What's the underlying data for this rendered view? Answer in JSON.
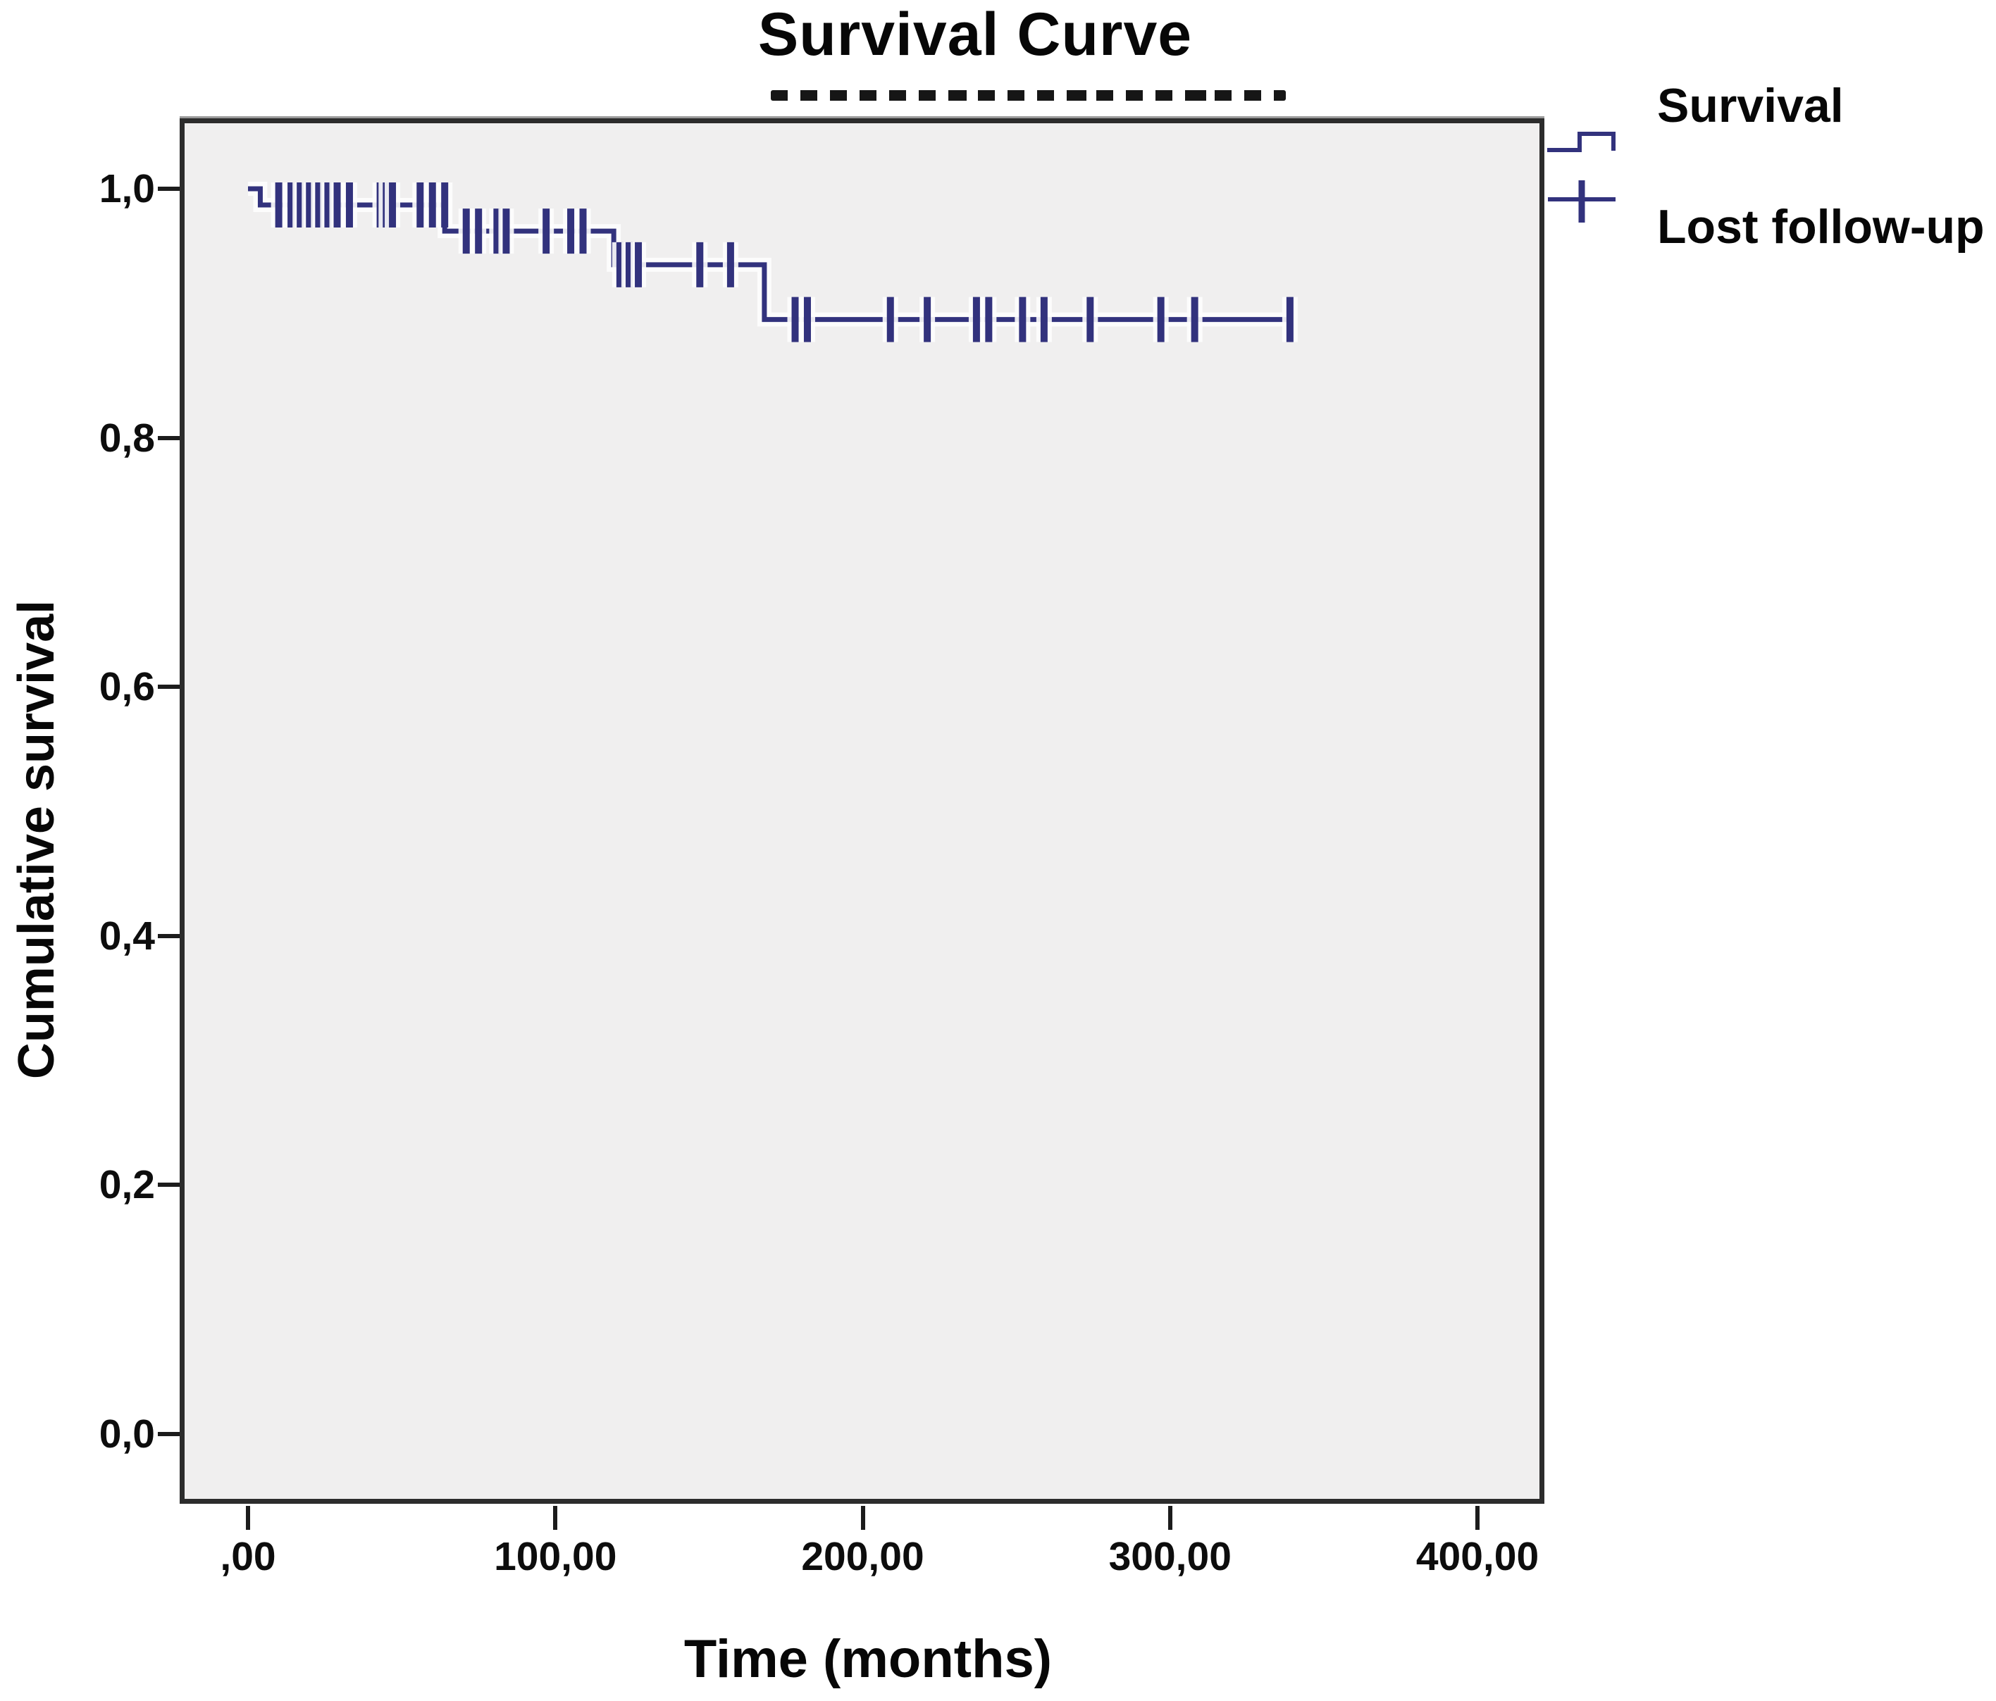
{
  "figure": {
    "title": "Survival Curve",
    "subtitle_redacted": true
  },
  "axes": {
    "x_title": "Time (months)",
    "y_title": "Cumulative survival"
  },
  "legend": {
    "items": [
      {
        "label": "Survival",
        "symbol": "step-line-icon"
      },
      {
        "label": "Lost follow-up",
        "symbol": "plus-censor-icon"
      }
    ]
  },
  "colors": {
    "curve": "#32327d",
    "halo": "#fdfdfd",
    "panel_bg": "#f0efef",
    "panel_border": "#2c2c2c",
    "text": "#0a0a0a"
  },
  "chart_data": {
    "type": "line",
    "subtype": "kaplan-meier-step",
    "title": "Survival Curve",
    "xlabel": "Time (months)",
    "ylabel": "Cumulative survival",
    "xlim": [
      0,
      400
    ],
    "ylim": [
      0.0,
      1.0
    ],
    "grid": false,
    "legend_position": "top-right-outside",
    "x_ticks": [
      {
        "value": 0,
        "label": ",00"
      },
      {
        "value": 100,
        "label": "100,00"
      },
      {
        "value": 200,
        "label": "200,00"
      },
      {
        "value": 300,
        "label": "300,00"
      },
      {
        "value": 400,
        "label": "400,00"
      }
    ],
    "y_ticks": [
      {
        "value": 0.0,
        "label": "0,0"
      },
      {
        "value": 0.2,
        "label": "0,2"
      },
      {
        "value": 0.4,
        "label": "0,4"
      },
      {
        "value": 0.6,
        "label": "0,6"
      },
      {
        "value": 0.8,
        "label": "0,8"
      },
      {
        "value": 1.0,
        "label": "1,0"
      }
    ],
    "series": [
      {
        "name": "Survival",
        "steps": [
          {
            "from": 0,
            "to": 4,
            "survival": 1.0
          },
          {
            "from": 4,
            "to": 64,
            "survival": 0.987
          },
          {
            "from": 64,
            "to": 119,
            "survival": 0.966
          },
          {
            "from": 119,
            "to": 168,
            "survival": 0.939
          },
          {
            "from": 168,
            "to": 340,
            "survival": 0.895
          }
        ]
      }
    ],
    "censored": [
      {
        "t": 10,
        "s": 0.987
      },
      {
        "t": 14,
        "s": 0.987
      },
      {
        "t": 17,
        "s": 0.987
      },
      {
        "t": 20,
        "s": 0.987
      },
      {
        "t": 23,
        "s": 0.987
      },
      {
        "t": 26,
        "s": 0.987
      },
      {
        "t": 29,
        "s": 0.987
      },
      {
        "t": 33,
        "s": 0.987
      },
      {
        "t": 43,
        "s": 0.987
      },
      {
        "t": 45,
        "s": 0.987
      },
      {
        "t": 47,
        "s": 0.987
      },
      {
        "t": 56,
        "s": 0.987
      },
      {
        "t": 60,
        "s": 0.987
      },
      {
        "t": 64,
        "s": 0.987
      },
      {
        "t": 71,
        "s": 0.966
      },
      {
        "t": 75,
        "s": 0.966
      },
      {
        "t": 81,
        "s": 0.966
      },
      {
        "t": 84,
        "s": 0.966
      },
      {
        "t": 97,
        "s": 0.966
      },
      {
        "t": 105,
        "s": 0.966
      },
      {
        "t": 109,
        "s": 0.966
      },
      {
        "t": 121,
        "s": 0.939
      },
      {
        "t": 124,
        "s": 0.939
      },
      {
        "t": 127,
        "s": 0.939
      },
      {
        "t": 147,
        "s": 0.939
      },
      {
        "t": 157,
        "s": 0.939
      },
      {
        "t": 178,
        "s": 0.895
      },
      {
        "t": 182,
        "s": 0.895
      },
      {
        "t": 209,
        "s": 0.895
      },
      {
        "t": 221,
        "s": 0.895
      },
      {
        "t": 237,
        "s": 0.895
      },
      {
        "t": 241,
        "s": 0.895
      },
      {
        "t": 252,
        "s": 0.895
      },
      {
        "t": 259,
        "s": 0.895
      },
      {
        "t": 274,
        "s": 0.895
      },
      {
        "t": 297,
        "s": 0.895
      },
      {
        "t": 308,
        "s": 0.895
      },
      {
        "t": 339,
        "s": 0.895
      }
    ]
  }
}
